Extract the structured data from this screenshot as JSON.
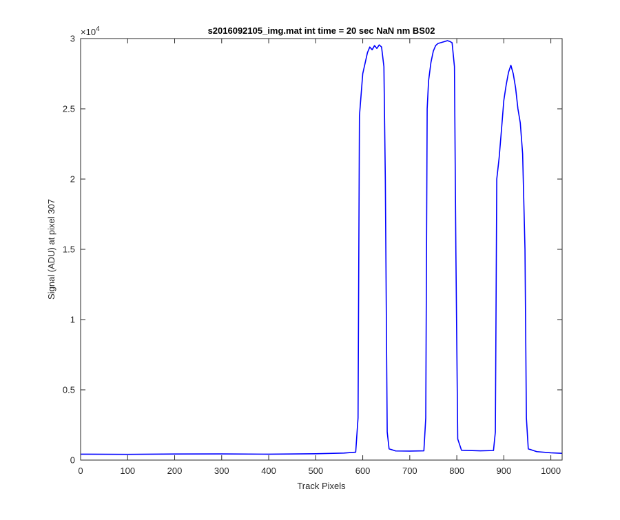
{
  "chart_data": {
    "type": "line",
    "title": "s2016092105_img.mat int time = 20 sec  NaN nm BS02",
    "xlabel": "Track Pixels",
    "ylabel": "Signal (ADU) at pixel 307",
    "xlim": [
      0,
      1024
    ],
    "ylim": [
      0,
      30000
    ],
    "xticks": [
      0,
      100,
      200,
      300,
      400,
      500,
      600,
      700,
      800,
      900,
      1000
    ],
    "xtick_labels": [
      "0",
      "100",
      "200",
      "300",
      "400",
      "500",
      "600",
      "700",
      "800",
      "900",
      "1000"
    ],
    "yticks": [
      0,
      5000,
      10000,
      15000,
      20000,
      25000,
      30000
    ],
    "ytick_labels": [
      "0",
      "0.5",
      "1",
      "1.5",
      "2",
      "2.5",
      "3"
    ],
    "y_exponent_label": "×10",
    "y_exponent_power": "4",
    "grid": false,
    "line_color": "#0000ff",
    "series": [
      {
        "x": [
          0,
          100,
          200,
          300,
          400,
          500,
          560,
          585,
          590,
          593,
          600,
          610,
          615,
          620,
          625,
          630,
          635,
          640,
          645,
          648,
          652,
          656,
          670,
          700,
          730,
          734,
          737,
          740,
          745,
          750,
          755,
          760,
          765,
          770,
          775,
          780,
          785,
          790,
          795,
          798,
          802,
          810,
          850,
          878,
          882,
          885,
          890,
          895,
          900,
          905,
          910,
          915,
          920,
          925,
          930,
          935,
          940,
          945,
          948,
          952,
          970,
          1000,
          1024
        ],
        "y": [
          420,
          410,
          430,
          440,
          420,
          450,
          500,
          560,
          3000,
          24500,
          27500,
          29000,
          29400,
          29200,
          29500,
          29300,
          29550,
          29400,
          28000,
          20000,
          2000,
          800,
          650,
          640,
          660,
          3000,
          25000,
          27000,
          28300,
          29100,
          29500,
          29650,
          29700,
          29750,
          29800,
          29850,
          29800,
          29700,
          28000,
          15000,
          1500,
          700,
          660,
          680,
          2000,
          20000,
          21500,
          23500,
          25600,
          26700,
          27600,
          28100,
          27500,
          26500,
          25000,
          24000,
          21800,
          15000,
          3000,
          800,
          600,
          520,
          480
        ]
      }
    ]
  }
}
